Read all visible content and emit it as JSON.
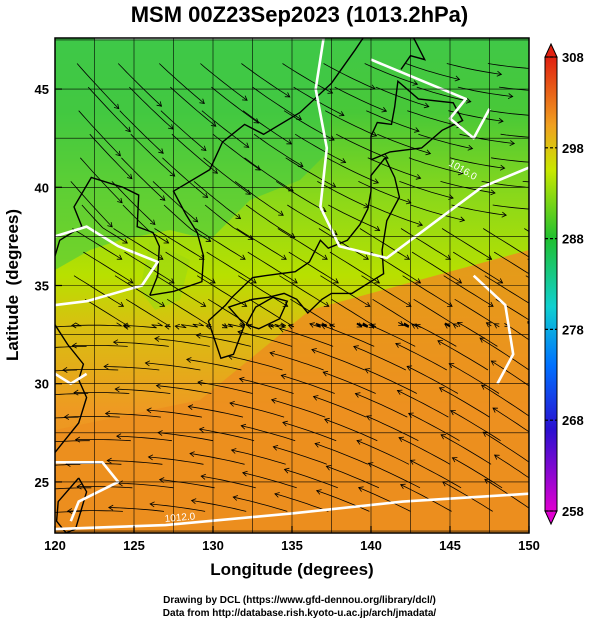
{
  "title": "MSM 00Z23Sep2023 (1013.2hPa)",
  "axes": {
    "xlabel": "Longitude (degrees)",
    "ylabel": "Latitude  (degrees)",
    "xticks": [
      120,
      125,
      130,
      135,
      140,
      145,
      150
    ],
    "yticks": [
      25,
      30,
      35,
      40,
      45
    ],
    "xlim": [
      120,
      150
    ],
    "ylim": [
      22.4,
      47.6
    ]
  },
  "colorbar": {
    "min": 258,
    "max": 308,
    "ticks": [
      258,
      268,
      278,
      288,
      298,
      308
    ]
  },
  "contour_labels": [
    "1016.0",
    "1012.0"
  ],
  "credits": {
    "line1": "Drawing by DCL (https://www.gfd-dennou.org/library/dcl/)",
    "line2": "Data from http://database.rish.kyoto-u.ac.jp/arch/jmadata/"
  },
  "colors": {
    "warm": "#e8901e",
    "mid": "#b8e000",
    "cool": "#3ec63a",
    "contour": "#ffffff",
    "coast": "#000000"
  }
}
